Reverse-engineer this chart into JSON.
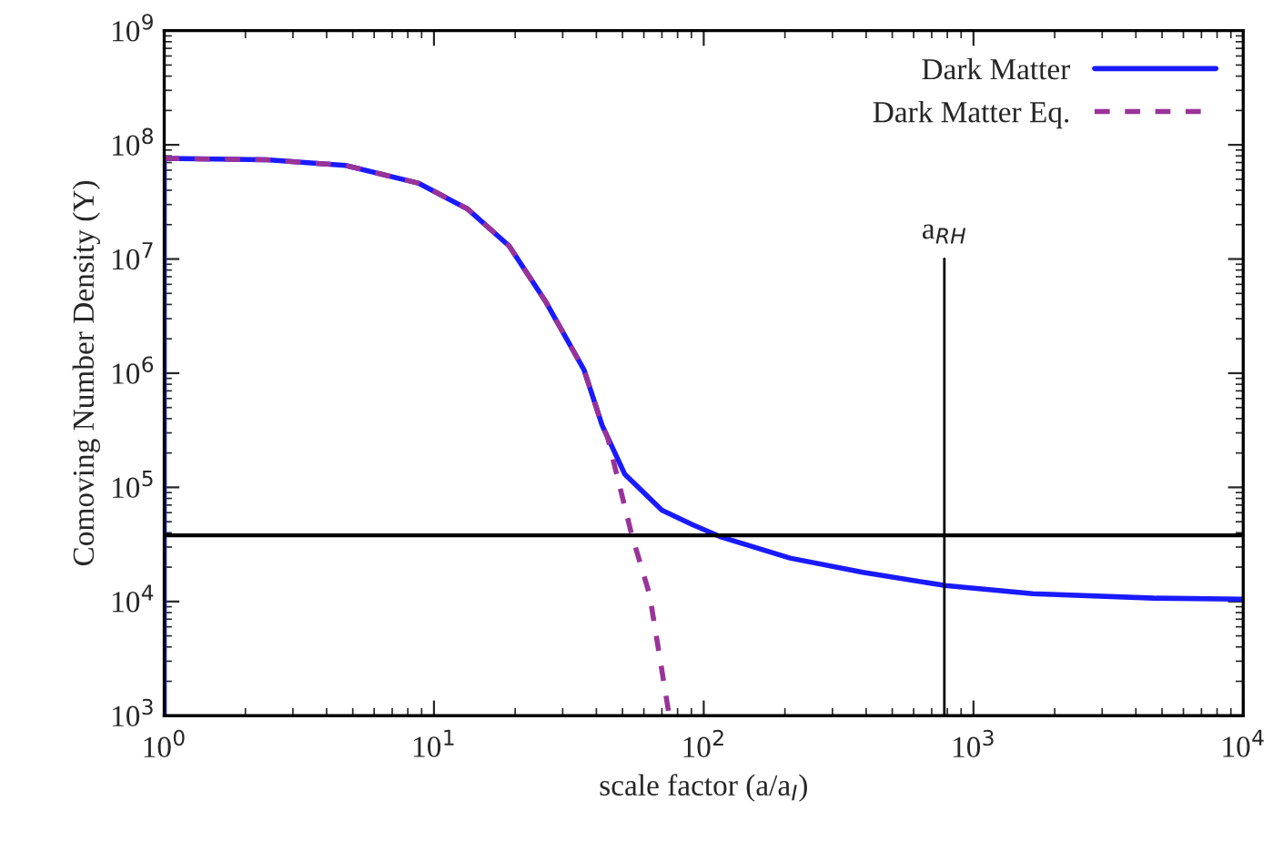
{
  "chart_data": {
    "type": "line",
    "xlabel": "scale factor (a/a$_{I}$)",
    "ylabel": "Comoving Number Density (Y)",
    "log": "xy",
    "xlim": [
      1,
      10000
    ],
    "ylim": [
      1000,
      1000000000
    ],
    "xticks": [
      {
        "value": 1,
        "label": "10$^{0}$"
      },
      {
        "value": 10,
        "label": "10$^{1}$"
      },
      {
        "value": 100,
        "label": "10$^{2}$"
      },
      {
        "value": 1000,
        "label": "10$^{3}$"
      },
      {
        "value": 10000,
        "label": "10$^{4}$"
      }
    ],
    "yticks": [
      {
        "value": 1000,
        "label": "10$^{3}$"
      },
      {
        "value": 10000,
        "label": "10$^{4}$"
      },
      {
        "value": 100000,
        "label": "10$^{5}$"
      },
      {
        "value": 1000000,
        "label": "10$^{6}$"
      },
      {
        "value": 10000000,
        "label": "10$^{7}$"
      },
      {
        "value": 100000000,
        "label": "10$^{8}$"
      },
      {
        "value": 1000000000,
        "label": "10$^{9}$"
      }
    ],
    "series": [
      {
        "name": "Dark Matter",
        "color": "#1a1aff",
        "line_style": "solid",
        "x": [
          1,
          1,
          2.4,
          4.7,
          8.8,
          13.3,
          19,
          26,
          36,
          42,
          51,
          70,
          91,
          115,
          209,
          389,
          785,
          1660,
          4680,
          10000
        ],
        "values": [
          1000,
          76000000,
          74000000,
          66000000,
          46000000,
          27500000,
          13000000,
          4200000,
          1070000,
          350000,
          130000,
          63000,
          47000,
          37000,
          24000,
          18000,
          13800,
          11700,
          10700,
          10500
        ]
      },
      {
        "name": "Dark Matter Eq.",
        "color": "#993399",
        "line_style": "dashed",
        "x": [
          1,
          2.4,
          4.7,
          8.8,
          13.3,
          19,
          26,
          36,
          42,
          44,
          54,
          63,
          74,
          75
        ],
        "values": [
          76000000,
          74000000,
          66000000,
          46000000,
          27500000,
          13000000,
          4200000,
          1070000,
          350000,
          275000,
          39000,
          11500,
          1100,
          1000
        ]
      }
    ],
    "ref_lines": [
      {
        "axis": "y",
        "value": 38000,
        "color": "#000000"
      },
      {
        "axis": "x",
        "value": 780,
        "label": "a$_{RH}$",
        "color": "#000000"
      }
    ],
    "marker": "none",
    "grid": false,
    "legend": "top right"
  }
}
